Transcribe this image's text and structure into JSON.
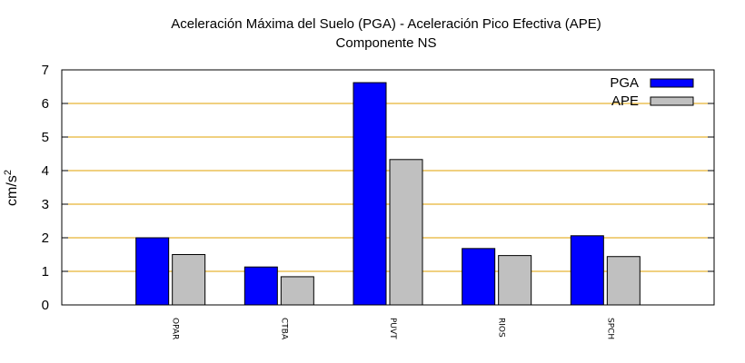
{
  "chart_data": {
    "type": "bar",
    "title": "Aceleración Máxima del Suelo (PGA) -  Aceleración Pico Efectiva (APE)",
    "subtitle": "Componente NS",
    "xlabel": "",
    "ylabel": "cm/s",
    "ylabel_superscript": "2",
    "ylim": [
      0,
      7
    ],
    "yticks": [
      "0",
      "1",
      "2",
      "3",
      "4",
      "5",
      "6",
      "7"
    ],
    "grid": true,
    "legend_position": "top-right",
    "categories": [
      "OPAR",
      "CTBA",
      "PUVT",
      "RIOS",
      "SPCH"
    ],
    "series": [
      {
        "name": "PGA",
        "color": "#0000ff",
        "values": [
          2.0,
          1.13,
          6.62,
          1.68,
          2.06
        ]
      },
      {
        "name": "APE",
        "color": "#c0c0c0",
        "values": [
          1.5,
          0.84,
          4.33,
          1.47,
          1.44
        ]
      }
    ],
    "grid_color": "#e0a000"
  }
}
